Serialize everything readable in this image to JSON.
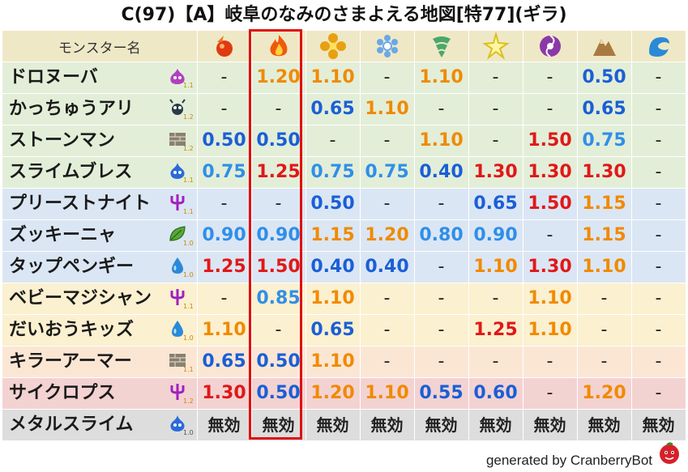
{
  "title": "C(97)【A】岐阜のなみのさまよえる地図[特77](ギラ)",
  "header": {
    "name_label": "モンスター名",
    "elements": [
      {
        "icon": "mera-icon",
        "color": "#e03a10"
      },
      {
        "icon": "gira-icon",
        "color": "#ef5a0a"
      },
      {
        "icon": "io-icon",
        "color": "#e8a010"
      },
      {
        "icon": "hyado-icon",
        "color": "#6aa8e8"
      },
      {
        "icon": "bagi-icon",
        "color": "#4aa86a"
      },
      {
        "icon": "dein-icon",
        "color": "#d8c020"
      },
      {
        "icon": "doruma-icon",
        "color": "#8a3aa8"
      },
      {
        "icon": "jibaria-icon",
        "color": "#a87a40"
      },
      {
        "icon": "aqua-icon",
        "color": "#2a8ad8"
      }
    ]
  },
  "rows": [
    {
      "name": "ドロヌーバ",
      "icon": "slime-purple-icon",
      "rank": "1.1",
      "bg": "green",
      "values": [
        {
          "t": "-",
          "c": "dash"
        },
        {
          "t": "1.20",
          "c": "orange"
        },
        {
          "t": "1.10",
          "c": "orange"
        },
        {
          "t": "-",
          "c": "dash"
        },
        {
          "t": "1.10",
          "c": "orange"
        },
        {
          "t": "-",
          "c": "dash"
        },
        {
          "t": "-",
          "c": "dash"
        },
        {
          "t": "0.50",
          "c": "blue"
        },
        {
          "t": "-",
          "c": "dash"
        }
      ]
    },
    {
      "name": "かっちゅうアリ",
      "icon": "insect-icon",
      "rank": "1.2",
      "bg": "green",
      "values": [
        {
          "t": "-",
          "c": "dash"
        },
        {
          "t": "-",
          "c": "dash"
        },
        {
          "t": "0.65",
          "c": "blue"
        },
        {
          "t": "1.10",
          "c": "orange"
        },
        {
          "t": "-",
          "c": "dash"
        },
        {
          "t": "-",
          "c": "dash"
        },
        {
          "t": "-",
          "c": "dash"
        },
        {
          "t": "0.65",
          "c": "blue"
        },
        {
          "t": "-",
          "c": "dash"
        }
      ]
    },
    {
      "name": "ストーンマン",
      "icon": "brick-icon",
      "rank": "1.2",
      "bg": "green",
      "values": [
        {
          "t": "0.50",
          "c": "blue"
        },
        {
          "t": "0.50",
          "c": "blue"
        },
        {
          "t": "-",
          "c": "dash"
        },
        {
          "t": "-",
          "c": "dash"
        },
        {
          "t": "1.10",
          "c": "orange"
        },
        {
          "t": "-",
          "c": "dash"
        },
        {
          "t": "1.50",
          "c": "red"
        },
        {
          "t": "0.75",
          "c": "lblue"
        },
        {
          "t": "-",
          "c": "dash"
        }
      ]
    },
    {
      "name": "スライムブレス",
      "icon": "slime-blue-icon",
      "rank": "1.1",
      "bg": "green",
      "values": [
        {
          "t": "0.75",
          "c": "lblue"
        },
        {
          "t": "1.25",
          "c": "red"
        },
        {
          "t": "0.75",
          "c": "lblue"
        },
        {
          "t": "0.75",
          "c": "lblue"
        },
        {
          "t": "0.40",
          "c": "blue"
        },
        {
          "t": "1.30",
          "c": "red"
        },
        {
          "t": "1.30",
          "c": "red"
        },
        {
          "t": "1.30",
          "c": "red"
        },
        {
          "t": "-",
          "c": "dash"
        }
      ]
    },
    {
      "name": "プリーストナイト",
      "icon": "trident-icon",
      "rank": "1.1",
      "bg": "blue",
      "values": [
        {
          "t": "-",
          "c": "dash"
        },
        {
          "t": "-",
          "c": "dash"
        },
        {
          "t": "0.50",
          "c": "blue"
        },
        {
          "t": "-",
          "c": "dash"
        },
        {
          "t": "-",
          "c": "dash"
        },
        {
          "t": "0.65",
          "c": "blue"
        },
        {
          "t": "1.50",
          "c": "red"
        },
        {
          "t": "1.15",
          "c": "orange"
        },
        {
          "t": "-",
          "c": "dash"
        }
      ]
    },
    {
      "name": "ズッキーニャ",
      "icon": "leaf-icon",
      "rank": "1.0",
      "bg": "blue",
      "values": [
        {
          "t": "0.90",
          "c": "lblue"
        },
        {
          "t": "0.90",
          "c": "lblue"
        },
        {
          "t": "1.15",
          "c": "orange"
        },
        {
          "t": "1.20",
          "c": "orange"
        },
        {
          "t": "0.80",
          "c": "lblue"
        },
        {
          "t": "0.90",
          "c": "lblue"
        },
        {
          "t": "-",
          "c": "dash"
        },
        {
          "t": "1.15",
          "c": "orange"
        },
        {
          "t": "-",
          "c": "dash"
        }
      ]
    },
    {
      "name": "タップペンギー",
      "icon": "water-drop-icon",
      "rank": "1.0",
      "bg": "blue",
      "values": [
        {
          "t": "1.25",
          "c": "red"
        },
        {
          "t": "1.50",
          "c": "red"
        },
        {
          "t": "0.40",
          "c": "blue"
        },
        {
          "t": "0.40",
          "c": "blue"
        },
        {
          "t": "-",
          "c": "dash"
        },
        {
          "t": "1.10",
          "c": "orange"
        },
        {
          "t": "1.30",
          "c": "red"
        },
        {
          "t": "1.10",
          "c": "orange"
        },
        {
          "t": "-",
          "c": "dash"
        }
      ]
    },
    {
      "name": "ベビーマジシャン",
      "icon": "trident-icon",
      "rank": "1.1",
      "bg": "yellow",
      "values": [
        {
          "t": "-",
          "c": "dash"
        },
        {
          "t": "0.85",
          "c": "lblue"
        },
        {
          "t": "1.10",
          "c": "orange"
        },
        {
          "t": "-",
          "c": "dash"
        },
        {
          "t": "-",
          "c": "dash"
        },
        {
          "t": "-",
          "c": "dash"
        },
        {
          "t": "1.10",
          "c": "orange"
        },
        {
          "t": "-",
          "c": "dash"
        },
        {
          "t": "-",
          "c": "dash"
        }
      ]
    },
    {
      "name": "だいおうキッズ",
      "icon": "water-drop-icon",
      "rank": "1.0",
      "bg": "yellow",
      "values": [
        {
          "t": "1.10",
          "c": "orange"
        },
        {
          "t": "-",
          "c": "dash"
        },
        {
          "t": "0.65",
          "c": "blue"
        },
        {
          "t": "-",
          "c": "dash"
        },
        {
          "t": "-",
          "c": "dash"
        },
        {
          "t": "1.25",
          "c": "red"
        },
        {
          "t": "1.10",
          "c": "orange"
        },
        {
          "t": "-",
          "c": "dash"
        },
        {
          "t": "-",
          "c": "dash"
        }
      ]
    },
    {
      "name": "キラーアーマー",
      "icon": "brick-icon",
      "rank": "1.1",
      "bg": "peach",
      "values": [
        {
          "t": "0.65",
          "c": "blue"
        },
        {
          "t": "0.50",
          "c": "blue"
        },
        {
          "t": "1.10",
          "c": "orange"
        },
        {
          "t": "-",
          "c": "dash"
        },
        {
          "t": "-",
          "c": "dash"
        },
        {
          "t": "-",
          "c": "dash"
        },
        {
          "t": "-",
          "c": "dash"
        },
        {
          "t": "-",
          "c": "dash"
        },
        {
          "t": "-",
          "c": "dash"
        }
      ]
    },
    {
      "name": "サイクロプス",
      "icon": "trident-icon",
      "rank": "1.2",
      "bg": "pink",
      "values": [
        {
          "t": "1.30",
          "c": "red"
        },
        {
          "t": "0.50",
          "c": "blue"
        },
        {
          "t": "1.20",
          "c": "orange"
        },
        {
          "t": "1.10",
          "c": "orange"
        },
        {
          "t": "0.55",
          "c": "blue"
        },
        {
          "t": "0.60",
          "c": "blue"
        },
        {
          "t": "-",
          "c": "dash"
        },
        {
          "t": "1.20",
          "c": "orange"
        },
        {
          "t": "-",
          "c": "dash"
        }
      ]
    },
    {
      "name": "メタルスライム",
      "icon": "slime-blue-icon",
      "rank": "1.0",
      "bg": "gray",
      "values": [
        {
          "t": "無効",
          "c": "muko"
        },
        {
          "t": "無効",
          "c": "muko"
        },
        {
          "t": "無効",
          "c": "muko"
        },
        {
          "t": "無効",
          "c": "muko"
        },
        {
          "t": "無効",
          "c": "muko"
        },
        {
          "t": "無効",
          "c": "muko"
        },
        {
          "t": "無効",
          "c": "muko"
        },
        {
          "t": "無効",
          "c": "muko"
        },
        {
          "t": "無効",
          "c": "muko"
        }
      ]
    }
  ],
  "highlight_column": 1,
  "footer": "generated by CranberryBot"
}
